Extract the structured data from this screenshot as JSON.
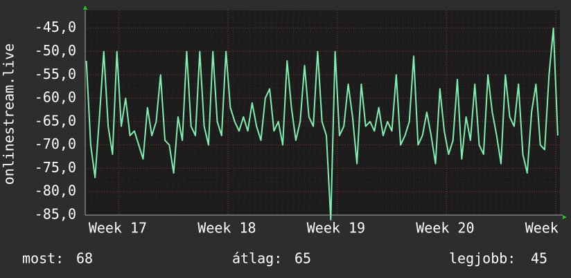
{
  "chart_data": {
    "type": "line",
    "y_label": "onlinestream.live",
    "x": [
      16.7,
      16.74,
      16.78,
      16.82,
      16.86,
      16.9,
      16.94,
      16.98,
      17.02,
      17.06,
      17.1,
      17.14,
      17.18,
      17.22,
      17.26,
      17.3,
      17.34,
      17.38,
      17.42,
      17.46,
      17.5,
      17.54,
      17.58,
      17.62,
      17.66,
      17.7,
      17.74,
      17.78,
      17.82,
      17.86,
      17.9,
      17.94,
      17.98,
      18.02,
      18.06,
      18.1,
      18.14,
      18.18,
      18.22,
      18.26,
      18.3,
      18.34,
      18.38,
      18.42,
      18.46,
      18.5,
      18.54,
      18.58,
      18.62,
      18.66,
      18.7,
      18.74,
      18.78,
      18.82,
      18.86,
      18.9,
      18.94,
      18.98,
      19.02,
      19.06,
      19.1,
      19.14,
      19.18,
      19.22,
      19.26,
      19.3,
      19.34,
      19.38,
      19.42,
      19.46,
      19.5,
      19.54,
      19.58,
      19.62,
      19.66,
      19.7,
      19.74,
      19.78,
      19.82,
      19.86,
      19.9,
      19.94,
      19.98,
      20.02,
      20.06,
      20.1,
      20.14,
      20.18,
      20.22,
      20.26,
      20.3,
      20.34,
      20.38,
      20.42,
      20.46,
      20.5,
      20.54,
      20.58,
      20.62,
      20.66,
      20.7,
      20.74,
      20.78,
      20.82,
      20.86,
      20.9,
      20.94,
      20.98,
      21.02
    ],
    "values": [
      -52,
      -70,
      -77,
      -64,
      -50,
      -66,
      -72,
      -50,
      -66,
      -60,
      -68,
      -67,
      -70,
      -73,
      -62,
      -68,
      -65,
      -55,
      -69,
      -70,
      -76,
      -64,
      -69,
      -50,
      -66,
      -68,
      -50,
      -66,
      -70,
      -50,
      -65,
      -68,
      -50,
      -62,
      -65,
      -67,
      -64,
      -67,
      -61,
      -66,
      -69,
      -60,
      -58,
      -67,
      -65,
      -70,
      -52,
      -62,
      -69,
      -65,
      -53,
      -64,
      -66,
      -50,
      -65,
      -68,
      -86,
      -50,
      -68,
      -66,
      -57,
      -64,
      -74,
      -57,
      -66,
      -65,
      -67,
      -62,
      -68,
      -65,
      -67,
      -55,
      -70,
      -68,
      -65,
      -51,
      -70,
      -68,
      -63,
      -68,
      -74,
      -58,
      -67,
      -72,
      -69,
      -56,
      -73,
      -64,
      -69,
      -57,
      -70,
      -72,
      -55,
      -63,
      -68,
      -74,
      -55,
      -64,
      -66,
      -57,
      -72,
      -76,
      -63,
      -57,
      -70,
      -71,
      -55,
      -45,
      -68
    ],
    "color": "#80f0b0",
    "xlim": [
      16.69,
      21.04
    ],
    "xticks": [
      {
        "value": 17,
        "label": "Week 17"
      },
      {
        "value": 18,
        "label": "Week 18"
      },
      {
        "value": 19,
        "label": "Week 19"
      },
      {
        "value": 20,
        "label": "Week 20"
      },
      {
        "value": 21,
        "label": "Week"
      }
    ],
    "ylim": [
      -85,
      -41.2
    ],
    "yticks": [
      {
        "value": -85,
        "label": "-85,0"
      },
      {
        "value": -80,
        "label": "-80,0"
      },
      {
        "value": -75,
        "label": "-75,0"
      },
      {
        "value": -70,
        "label": "-70,0"
      },
      {
        "value": -65,
        "label": "-65,0"
      },
      {
        "value": -60,
        "label": "-60,0"
      },
      {
        "value": -55,
        "label": "-55,0"
      },
      {
        "value": -50,
        "label": "-50,0"
      },
      {
        "value": -45,
        "label": "-45,0"
      }
    ],
    "grid": true,
    "stats": [
      {
        "label": "most:",
        "value": 68
      },
      {
        "label": "átlag:",
        "value": 65
      },
      {
        "label": "legjobb:",
        "value": 45
      }
    ]
  }
}
